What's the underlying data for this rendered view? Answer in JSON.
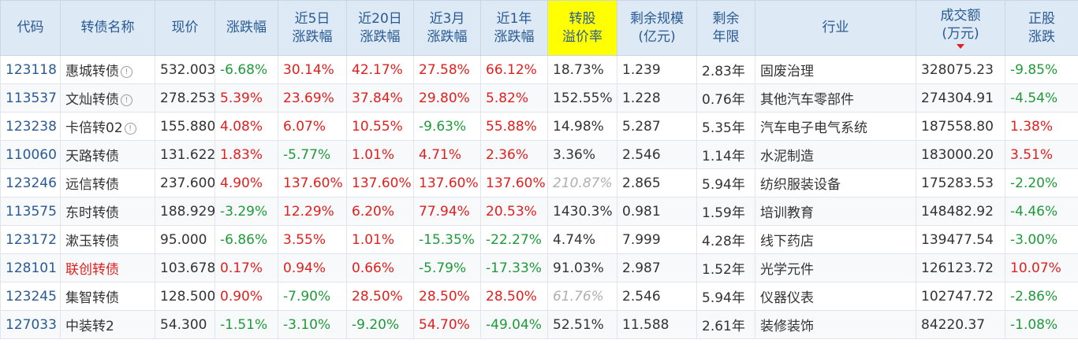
{
  "headers": [
    {
      "l1": "代码",
      "l2": ""
    },
    {
      "l1": "转债名称",
      "l2": ""
    },
    {
      "l1": "现价",
      "l2": ""
    },
    {
      "l1": "涨跌幅",
      "l2": ""
    },
    {
      "l1": "近5日",
      "l2": "涨跌幅"
    },
    {
      "l1": "近20日",
      "l2": "涨跌幅"
    },
    {
      "l1": "近3月",
      "l2": "涨跌幅"
    },
    {
      "l1": "近1年",
      "l2": "涨跌幅"
    },
    {
      "l1": "转股",
      "l2": "溢价率"
    },
    {
      "l1": "剩余规模",
      "l2": "(亿元)"
    },
    {
      "l1": "剩余",
      "l2": "年限"
    },
    {
      "l1": "行业",
      "l2": ""
    },
    {
      "l1": "成交额",
      "l2": "(万元)"
    },
    {
      "l1": "正股",
      "l2": "涨跌"
    }
  ],
  "sort": {
    "column": "成交额",
    "direction": "desc"
  },
  "colors": {
    "up": "#e0201e",
    "down": "#1f9a3a",
    "header_bg": "#dde9f5",
    "highlight": "#ffff00",
    "link": "#2a5a94"
  },
  "rows": [
    {
      "code": "123118",
      "name": "惠城转债",
      "info_icon": true,
      "name_red": false,
      "price": "532.003",
      "chg": "-6.68%",
      "chg5": "30.14%",
      "chg20": "42.17%",
      "chg3m": "27.58%",
      "chg1y": "66.12%",
      "premium": "18.73%",
      "premium_italic": false,
      "scale": "1.239",
      "years": "2.83年",
      "industry": "固废治理",
      "turnover": "328075.23",
      "stock_chg": "-9.85%"
    },
    {
      "code": "113537",
      "name": "文灿转债",
      "info_icon": true,
      "name_red": false,
      "price": "278.253",
      "chg": "5.39%",
      "chg5": "23.69%",
      "chg20": "37.84%",
      "chg3m": "29.80%",
      "chg1y": "5.82%",
      "premium": "152.55%",
      "premium_italic": false,
      "scale": "1.228",
      "years": "0.76年",
      "industry": "其他汽车零部件",
      "turnover": "274304.91",
      "stock_chg": "-4.54%"
    },
    {
      "code": "123238",
      "name": "卡倍转02",
      "info_icon": true,
      "name_red": false,
      "price": "155.880",
      "chg": "4.08%",
      "chg5": "6.07%",
      "chg20": "10.55%",
      "chg3m": "-9.63%",
      "chg1y": "55.88%",
      "premium": "14.98%",
      "premium_italic": false,
      "scale": "5.287",
      "years": "5.35年",
      "industry": "汽车电子电气系统",
      "turnover": "187558.80",
      "stock_chg": "1.38%"
    },
    {
      "code": "110060",
      "name": "天路转债",
      "info_icon": false,
      "name_red": false,
      "price": "131.622",
      "chg": "1.83%",
      "chg5": "-5.77%",
      "chg20": "1.01%",
      "chg3m": "4.71%",
      "chg1y": "2.36%",
      "premium": "3.36%",
      "premium_italic": false,
      "scale": "2.546",
      "years": "1.14年",
      "industry": "水泥制造",
      "turnover": "183000.20",
      "stock_chg": "3.51%"
    },
    {
      "code": "123246",
      "name": "远信转债",
      "info_icon": false,
      "name_red": false,
      "price": "237.600",
      "chg": "4.90%",
      "chg5": "137.60%",
      "chg20": "137.60%",
      "chg3m": "137.60%",
      "chg1y": "137.60%",
      "premium": "210.87%",
      "premium_italic": true,
      "scale": "2.865",
      "years": "5.94年",
      "industry": "纺织服装设备",
      "turnover": "175283.53",
      "stock_chg": "-2.20%"
    },
    {
      "code": "113575",
      "name": "东时转债",
      "info_icon": false,
      "name_red": false,
      "price": "188.929",
      "chg": "-3.29%",
      "chg5": "12.29%",
      "chg20": "6.20%",
      "chg3m": "77.94%",
      "chg1y": "20.53%",
      "premium": "1430.3%",
      "premium_italic": false,
      "scale": "0.981",
      "years": "1.59年",
      "industry": "培训教育",
      "turnover": "148482.92",
      "stock_chg": "-4.46%"
    },
    {
      "code": "123172",
      "name": "漱玉转债",
      "info_icon": false,
      "name_red": false,
      "price": "95.000",
      "chg": "-6.86%",
      "chg5": "3.55%",
      "chg20": "1.01%",
      "chg3m": "-15.35%",
      "chg1y": "-22.27%",
      "premium": "4.74%",
      "premium_italic": false,
      "scale": "7.999",
      "years": "4.28年",
      "industry": "线下药店",
      "turnover": "139477.54",
      "stock_chg": "-3.00%"
    },
    {
      "code": "128101",
      "name": "联创转债",
      "info_icon": false,
      "name_red": true,
      "price": "103.678",
      "chg": "0.17%",
      "chg5": "0.94%",
      "chg20": "0.66%",
      "chg3m": "-5.79%",
      "chg1y": "-17.33%",
      "premium": "91.03%",
      "premium_italic": false,
      "scale": "2.987",
      "years": "1.52年",
      "industry": "光学元件",
      "turnover": "126123.72",
      "stock_chg": "10.07%"
    },
    {
      "code": "123245",
      "name": "集智转债",
      "info_icon": false,
      "name_red": false,
      "price": "128.500",
      "chg": "0.90%",
      "chg5": "-7.90%",
      "chg20": "28.50%",
      "chg3m": "28.50%",
      "chg1y": "28.50%",
      "premium": "61.76%",
      "premium_italic": true,
      "scale": "2.546",
      "years": "5.94年",
      "industry": "仪器仪表",
      "turnover": "102747.72",
      "stock_chg": "-2.86%"
    },
    {
      "code": "127033",
      "name": "中装转2",
      "info_icon": false,
      "name_red": false,
      "price": "54.300",
      "chg": "-1.51%",
      "chg5": "-3.10%",
      "chg20": "-9.20%",
      "chg3m": "54.70%",
      "chg1y": "-49.04%",
      "premium": "52.51%",
      "premium_italic": false,
      "scale": "11.588",
      "years": "2.61年",
      "industry": "装修装饰",
      "turnover": "84220.37",
      "stock_chg": "-1.08%"
    }
  ]
}
